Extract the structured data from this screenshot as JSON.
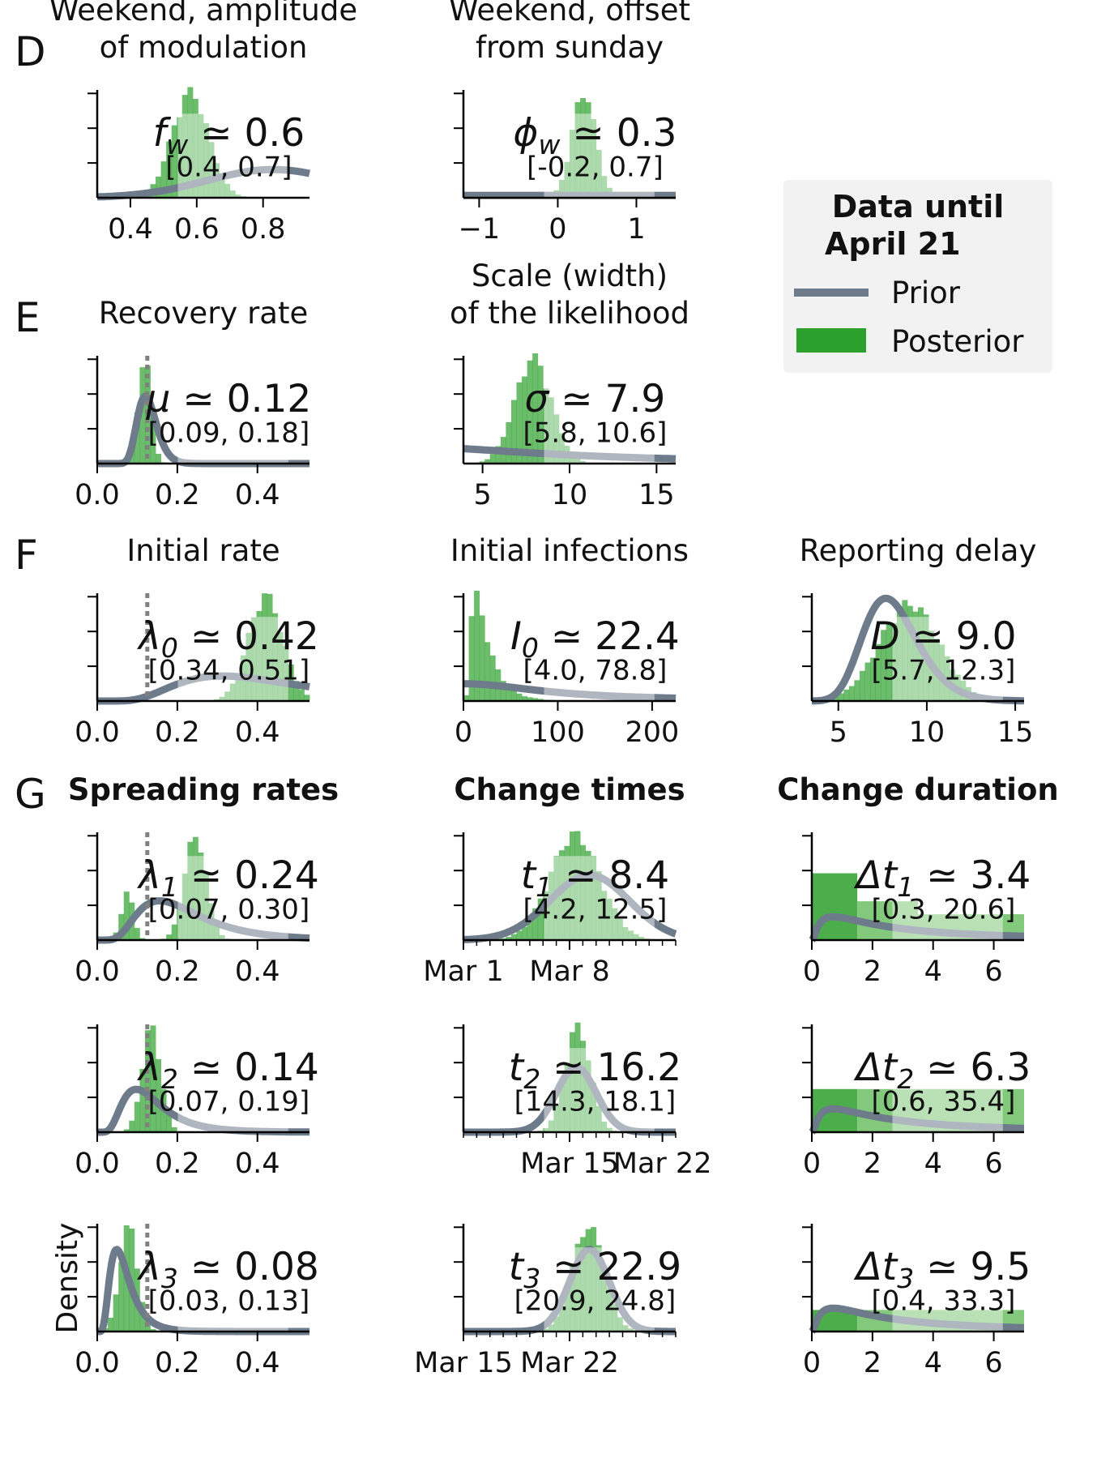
{
  "colors": {
    "prior": "#6e7b8b",
    "prior_light": "#c3c8d1",
    "posterior": "#2ca02c",
    "posterior_light": "#b9deb5",
    "legend_bg": "#f2f2f2",
    "marker": "#808080"
  },
  "legend": {
    "title_line1": "Data until",
    "title_line2": "April 21",
    "prior_label": "Prior",
    "posterior_label": "Posterior"
  },
  "y_label": "Density",
  "chart_data": [
    {
      "id": "fw",
      "type": "histogram+density",
      "row_letter": "D",
      "title": [
        "Weekend, amplitude",
        "of modulation"
      ],
      "xlim": [
        0.3,
        0.94
      ],
      "ticks": [
        0.4,
        0.6,
        0.8
      ],
      "tick_labels": [
        "0.4",
        "0.6",
        "0.8"
      ],
      "estimate": {
        "symbol": "f",
        "sub": "w",
        "italic": true,
        "value": "0.6",
        "ci": "[0.4, 0.7]"
      },
      "posterior": {
        "mean": 0.58,
        "sd": 0.055
      },
      "prior": {
        "kind": "normal",
        "mean": 0.83,
        "sd": 0.2
      }
    },
    {
      "id": "phiw",
      "type": "histogram+density",
      "title": [
        "Weekend, offset",
        "from sunday"
      ],
      "xlim": [
        -1.2,
        1.5
      ],
      "ticks": [
        -1,
        0,
        1
      ],
      "tick_labels": [
        "−1",
        "0",
        "1"
      ],
      "estimate": {
        "symbol": "ϕ",
        "sub": "w",
        "italic": true,
        "value": "0.3",
        "ci": "[-0.2, 0.7]"
      },
      "posterior": {
        "mean": 0.33,
        "sd": 0.15
      },
      "prior": {
        "kind": "flat",
        "level": 0.06
      }
    },
    {
      "id": "mu",
      "type": "histogram+density",
      "row_letter": "E",
      "title": [
        "Recovery rate"
      ],
      "xlim": [
        0.0,
        0.53
      ],
      "ticks": [
        0.0,
        0.2,
        0.4
      ],
      "tick_labels": [
        "0.0",
        "0.2",
        "0.4"
      ],
      "marker_x": 0.125,
      "estimate": {
        "symbol": "μ",
        "sub": "",
        "italic": true,
        "value": "0.12",
        "ci": "[0.09, 0.18]"
      },
      "posterior": {
        "mean": 0.118,
        "sd": 0.016
      },
      "prior": {
        "kind": "lognormal",
        "median": 0.125,
        "sigma": 0.2
      }
    },
    {
      "id": "sigma",
      "type": "histogram+density",
      "title": [
        "Scale (width)",
        "of the likelihood"
      ],
      "xlim": [
        3.9,
        16.1
      ],
      "ticks": [
        5,
        10,
        15
      ],
      "tick_labels": [
        "5",
        "10",
        "15"
      ],
      "estimate": {
        "symbol": "σ",
        "sub": "",
        "italic": true,
        "value": "7.9",
        "ci": "[5.8, 10.6]"
      },
      "posterior": {
        "mean": 7.9,
        "sd": 1.05
      },
      "prior": {
        "kind": "halfcauchy",
        "scale": 10
      }
    },
    {
      "id": "lambda0",
      "type": "histogram+density",
      "row_letter": "F",
      "title": [
        "Initial rate"
      ],
      "xlim": [
        0.0,
        0.53
      ],
      "ticks": [
        0.0,
        0.2,
        0.4
      ],
      "tick_labels": [
        "0.0",
        "0.2",
        "0.4"
      ],
      "marker_x": 0.125,
      "estimate": {
        "symbol": "λ",
        "sub": "0",
        "italic": true,
        "value": "0.42",
        "ci": "[0.34, 0.51]"
      },
      "posterior": {
        "mean": 0.42,
        "sd": 0.043
      },
      "prior": {
        "kind": "lognormal",
        "median": 0.4,
        "sigma": 0.5
      }
    },
    {
      "id": "I0",
      "type": "histogram+density",
      "title": [
        "Initial infections"
      ],
      "xlim": [
        0,
        225
      ],
      "ticks": [
        0,
        100,
        200
      ],
      "tick_labels": [
        "0",
        "100",
        "200"
      ],
      "estimate": {
        "symbol": "I",
        "sub": "0",
        "italic": true,
        "value": "22.4",
        "ci": "[4.0, 78.8]"
      },
      "posterior": {
        "kind": "lognormal",
        "median": 20,
        "sigma": 0.65
      },
      "prior": {
        "kind": "halfcauchy",
        "scale": 100
      }
    },
    {
      "id": "D",
      "type": "histogram+density",
      "title": [
        "Reporting delay"
      ],
      "xlim": [
        3.5,
        15.5
      ],
      "ticks": [
        5,
        10,
        15
      ],
      "tick_labels": [
        "5",
        "10",
        "15"
      ],
      "estimate": {
        "symbol": "D",
        "sub": "",
        "italic": true,
        "value": "9.0",
        "ci": "[5.7, 12.3]"
      },
      "posterior": {
        "mean": 9.0,
        "sd": 1.7
      },
      "prior": {
        "kind": "lognormal",
        "median": 8,
        "sigma": 0.2
      }
    },
    {
      "id": "lambda1",
      "type": "histogram+density",
      "row_letter": "G",
      "title_bold": true,
      "title": [
        "Spreading rates"
      ],
      "xlim": [
        0.0,
        0.53
      ],
      "ticks": [
        0.0,
        0.2,
        0.4
      ],
      "tick_labels": [
        "0.0",
        "0.2",
        "0.4"
      ],
      "marker_x": 0.125,
      "estimate": {
        "symbol": "λ",
        "sub": "1",
        "italic": true,
        "value": "0.24",
        "ci": "[0.07, 0.30]"
      },
      "posterior": {
        "kind": "mixture",
        "parts": [
          {
            "w": 0.8,
            "mean": 0.245,
            "sd": 0.027
          },
          {
            "w": 0.2,
            "mean": 0.075,
            "sd": 0.015
          }
        ]
      },
      "prior": {
        "kind": "lognormal",
        "median": 0.2,
        "sigma": 0.5
      }
    },
    {
      "id": "t1",
      "type": "histogram+density",
      "title_bold": true,
      "title": [
        "Change times"
      ],
      "xlim": [
        0,
        16
      ],
      "ticks": [
        0,
        8
      ],
      "tick_labels": [
        "Mar 1",
        "Mar 8"
      ],
      "minor_ticks": 1,
      "estimate": {
        "symbol": "t",
        "sub": "1",
        "italic": true,
        "value": "8.4",
        "ci": "[4.2, 12.5]"
      },
      "posterior": {
        "mean": 8.4,
        "sd": 1.9
      },
      "prior": {
        "kind": "normal",
        "mean": 9.5,
        "sd": 3
      }
    },
    {
      "id": "dt1",
      "type": "histogram+density",
      "title_bold": true,
      "title": [
        "Change duration"
      ],
      "xlim": [
        0,
        7
      ],
      "ticks": [
        0,
        2,
        4,
        6
      ],
      "tick_labels": [
        "0",
        "2",
        "4",
        "6"
      ],
      "estimate": {
        "symbol": "Δt",
        "sub": "1",
        "italic": true,
        "value": "3.4",
        "ci": "[0.3, 20.6]"
      },
      "posterior": {
        "kind": "bins",
        "edges": [
          0,
          1.5,
          3.5,
          7
        ],
        "heights": [
          0.62,
          0.36,
          0.24
        ]
      },
      "prior": {
        "kind": "lognormal",
        "median": 3,
        "sigma": 1.2
      }
    },
    {
      "id": "lambda2",
      "type": "histogram+density",
      "title": [],
      "xlim": [
        0.0,
        0.53
      ],
      "ticks": [
        0.0,
        0.2,
        0.4
      ],
      "tick_labels": [
        "0.0",
        "0.2",
        "0.4"
      ],
      "marker_x": 0.125,
      "estimate": {
        "symbol": "λ",
        "sub": "2",
        "italic": true,
        "value": "0.14",
        "ci": "[0.07, 0.19]"
      },
      "posterior": {
        "mean": 0.135,
        "sd": 0.023
      },
      "prior": {
        "kind": "lognormal",
        "median": 0.125,
        "sigma": 0.5
      }
    },
    {
      "id": "t2",
      "type": "histogram+density",
      "title": [],
      "xlim": [
        0,
        16
      ],
      "ticks": [
        8,
        15
      ],
      "tick_labels": [
        "Mar 15",
        "Mar 22"
      ],
      "minor_ticks": 1,
      "estimate": {
        "symbol": "t",
        "sub": "2",
        "italic": true,
        "value": "16.2",
        "ci": "[14.3, 18.1]"
      },
      "posterior": {
        "mean": 8.6,
        "sd": 0.95
      },
      "prior": {
        "kind": "normal",
        "mean": 8.5,
        "sd": 1.5
      }
    },
    {
      "id": "dt2",
      "type": "histogram+density",
      "title": [],
      "xlim": [
        0,
        7
      ],
      "ticks": [
        0,
        2,
        4,
        6
      ],
      "tick_labels": [
        "0",
        "2",
        "4",
        "6"
      ],
      "estimate": {
        "symbol": "Δt",
        "sub": "2",
        "italic": true,
        "value": "6.3",
        "ci": "[0.6, 35.4]"
      },
      "posterior": {
        "kind": "bins",
        "edges": [
          0,
          1.5,
          7
        ],
        "heights": [
          0.4,
          0.4
        ]
      },
      "prior": {
        "kind": "lognormal",
        "median": 3,
        "sigma": 1.2
      }
    },
    {
      "id": "lambda3",
      "type": "histogram+density",
      "title": [],
      "xlim": [
        0.0,
        0.53
      ],
      "ticks": [
        0.0,
        0.2,
        0.4
      ],
      "tick_labels": [
        "0.0",
        "0.2",
        "0.4"
      ],
      "marker_x": 0.125,
      "estimate": {
        "symbol": "λ",
        "sub": "3",
        "italic": true,
        "value": "0.08",
        "ci": "[0.03, 0.13]"
      },
      "posterior": {
        "mean": 0.078,
        "sd": 0.022
      },
      "prior": {
        "kind": "lognormal",
        "median": 0.0625,
        "sigma": 0.5
      }
    },
    {
      "id": "t3",
      "type": "histogram+density",
      "title": [],
      "xlim": [
        0,
        16
      ],
      "ticks": [
        0,
        8
      ],
      "tick_labels": [
        "Mar 15",
        "Mar 22"
      ],
      "minor_ticks": 1,
      "estimate": {
        "symbol": "t",
        "sub": "3",
        "italic": true,
        "value": "22.9",
        "ci": "[20.9, 24.8]"
      },
      "posterior": {
        "mean": 9.4,
        "sd": 1.2
      },
      "prior": {
        "kind": "normal",
        "mean": 9.5,
        "sd": 1.5
      }
    },
    {
      "id": "dt3",
      "type": "histogram+density",
      "title": [],
      "xlim": [
        0,
        7
      ],
      "ticks": [
        0,
        2,
        4,
        6
      ],
      "tick_labels": [
        "0",
        "2",
        "4",
        "6"
      ],
      "estimate": {
        "symbol": "Δt",
        "sub": "3",
        "italic": true,
        "value": "9.5",
        "ci": "[0.4, 33.3]"
      },
      "posterior": {
        "kind": "bins",
        "edges": [
          0,
          1.5,
          7
        ],
        "heights": [
          0.2,
          0.2
        ]
      },
      "prior": {
        "kind": "lognormal",
        "median": 3,
        "sigma": 1.2
      }
    }
  ]
}
